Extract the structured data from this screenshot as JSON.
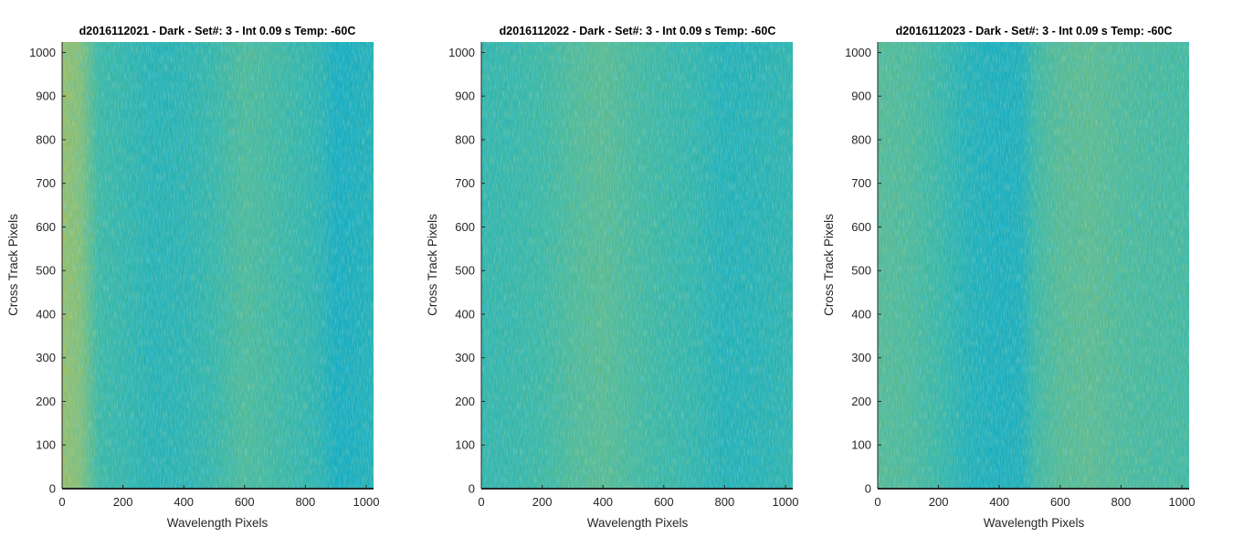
{
  "chart_data": [
    {
      "type": "heatmap",
      "title": "d2016112021 - Dark - Set#: 3 - Int 0.09 s Temp: -60C",
      "xlabel": "Wavelength Pixels",
      "ylabel": "Cross Track Pixels",
      "xlim": [
        0,
        1024
      ],
      "ylim": [
        0,
        1024
      ],
      "xticks": [
        0,
        200,
        400,
        600,
        800,
        1000
      ],
      "yticks": [
        0,
        100,
        200,
        300,
        400,
        500,
        600,
        700,
        800,
        900,
        1000
      ],
      "colormap": "parula",
      "column_profile": [
        {
          "x": 0,
          "v": 0.82
        },
        {
          "x": 60,
          "v": 0.74
        },
        {
          "x": 120,
          "v": 0.55
        },
        {
          "x": 200,
          "v": 0.5
        },
        {
          "x": 300,
          "v": 0.44
        },
        {
          "x": 400,
          "v": 0.46
        },
        {
          "x": 500,
          "v": 0.52
        },
        {
          "x": 600,
          "v": 0.6
        },
        {
          "x": 700,
          "v": 0.56
        },
        {
          "x": 800,
          "v": 0.5
        },
        {
          "x": 850,
          "v": 0.46
        },
        {
          "x": 900,
          "v": 0.36
        },
        {
          "x": 960,
          "v": 0.38
        },
        {
          "x": 1024,
          "v": 0.42
        }
      ]
    },
    {
      "type": "heatmap",
      "title": "d2016112022 - Dark - Set#: 3 - Int 0.09 s Temp: -60C",
      "xlabel": "Wavelength Pixels",
      "ylabel": "Cross Track Pixels",
      "xlim": [
        0,
        1024
      ],
      "ylim": [
        0,
        1024
      ],
      "xticks": [
        0,
        200,
        400,
        600,
        800,
        1000
      ],
      "yticks": [
        0,
        100,
        200,
        300,
        400,
        500,
        600,
        700,
        800,
        900,
        1000
      ],
      "colormap": "parula",
      "column_profile": [
        {
          "x": 0,
          "v": 0.5
        },
        {
          "x": 100,
          "v": 0.52
        },
        {
          "x": 200,
          "v": 0.55
        },
        {
          "x": 300,
          "v": 0.6
        },
        {
          "x": 400,
          "v": 0.63
        },
        {
          "x": 500,
          "v": 0.58
        },
        {
          "x": 600,
          "v": 0.54
        },
        {
          "x": 700,
          "v": 0.5
        },
        {
          "x": 800,
          "v": 0.42
        },
        {
          "x": 900,
          "v": 0.44
        },
        {
          "x": 1024,
          "v": 0.48
        }
      ]
    },
    {
      "type": "heatmap",
      "title": "d2016112023 - Dark - Set#: 3 - Int 0.09 s Temp: -60C",
      "xlabel": "Wavelength Pixels",
      "ylabel": "Cross Track Pixels",
      "xlim": [
        0,
        1024
      ],
      "ylim": [
        0,
        1024
      ],
      "xticks": [
        0,
        200,
        400,
        600,
        800,
        1000
      ],
      "yticks": [
        0,
        100,
        200,
        300,
        400,
        500,
        600,
        700,
        800,
        900,
        1000
      ],
      "colormap": "parula",
      "column_profile": [
        {
          "x": 0,
          "v": 0.62
        },
        {
          "x": 100,
          "v": 0.6
        },
        {
          "x": 200,
          "v": 0.54
        },
        {
          "x": 300,
          "v": 0.42
        },
        {
          "x": 400,
          "v": 0.38
        },
        {
          "x": 470,
          "v": 0.4
        },
        {
          "x": 520,
          "v": 0.56
        },
        {
          "x": 600,
          "v": 0.62
        },
        {
          "x": 700,
          "v": 0.64
        },
        {
          "x": 800,
          "v": 0.6
        },
        {
          "x": 900,
          "v": 0.58
        },
        {
          "x": 1024,
          "v": 0.57
        }
      ]
    }
  ]
}
